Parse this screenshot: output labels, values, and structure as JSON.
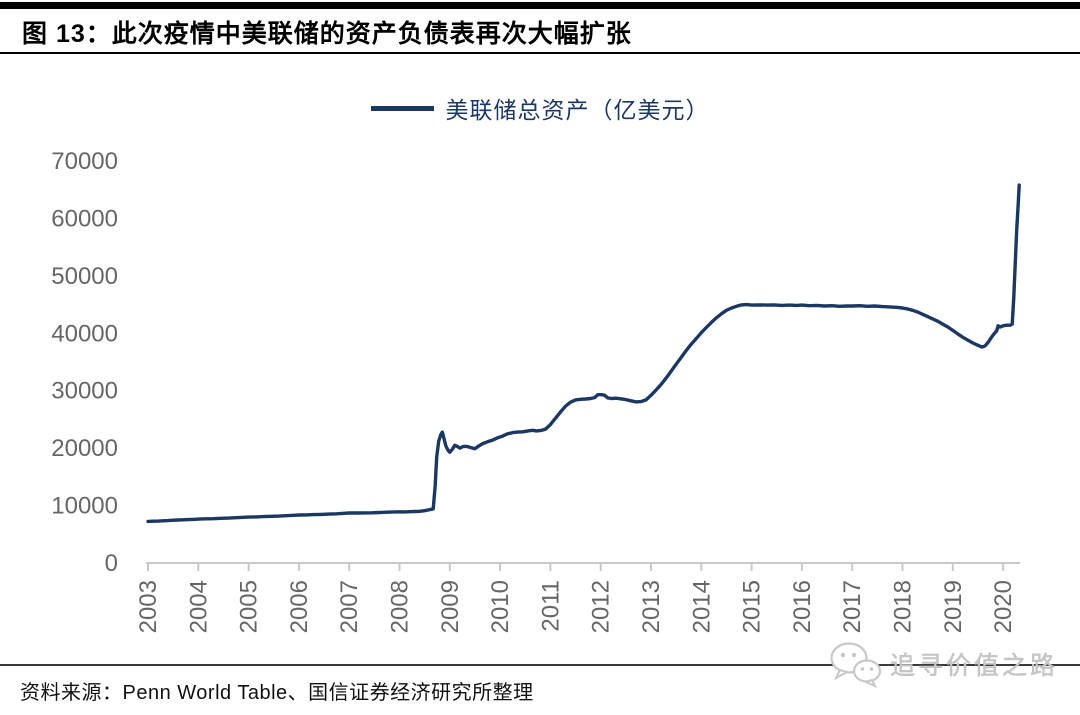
{
  "header": {
    "title": "图 13：此次疫情中美联储的资产负债表再次大幅扩张"
  },
  "legend": {
    "label": "美联储总资产（亿美元）"
  },
  "footer": {
    "source": "资料来源：Penn World Table、国信证券经济研究所整理",
    "watermark": "追寻价值之路"
  },
  "colors": {
    "series": "#1b3763",
    "axis_text": "#666666",
    "axis_line": "#c8c8c8",
    "watermark": "#c7c7c7"
  },
  "chart_data": {
    "type": "line",
    "title": "美联储总资产（亿美元）",
    "series_name": "美联储总资产（亿美元）",
    "xlabel": "",
    "ylabel": "",
    "ylim": [
      0,
      70000
    ],
    "yticks": [
      0,
      10000,
      20000,
      30000,
      40000,
      50000,
      60000,
      70000
    ],
    "xticks": [
      2003,
      2004,
      2005,
      2006,
      2007,
      2008,
      2009,
      2010,
      2011,
      2012,
      2013,
      2014,
      2015,
      2016,
      2017,
      2018,
      2019,
      2020
    ],
    "grid": false,
    "legend_position": "top-center",
    "points": [
      [
        2003.0,
        7250
      ],
      [
        2003.1,
        7280
      ],
      [
        2003.2,
        7300
      ],
      [
        2003.3,
        7350
      ],
      [
        2003.4,
        7380
      ],
      [
        2003.5,
        7450
      ],
      [
        2003.6,
        7480
      ],
      [
        2003.7,
        7520
      ],
      [
        2003.8,
        7560
      ],
      [
        2003.9,
        7600
      ],
      [
        2004.0,
        7650
      ],
      [
        2004.15,
        7700
      ],
      [
        2004.3,
        7720
      ],
      [
        2004.45,
        7780
      ],
      [
        2004.6,
        7820
      ],
      [
        2004.75,
        7880
      ],
      [
        2004.9,
        7950
      ],
      [
        2005.0,
        8000
      ],
      [
        2005.15,
        8030
      ],
      [
        2005.3,
        8080
      ],
      [
        2005.45,
        8130
      ],
      [
        2005.6,
        8170
      ],
      [
        2005.75,
        8230
      ],
      [
        2005.9,
        8300
      ],
      [
        2006.0,
        8350
      ],
      [
        2006.15,
        8380
      ],
      [
        2006.3,
        8430
      ],
      [
        2006.45,
        8470
      ],
      [
        2006.6,
        8520
      ],
      [
        2006.75,
        8570
      ],
      [
        2006.9,
        8650
      ],
      [
        2007.0,
        8700
      ],
      [
        2007.15,
        8700
      ],
      [
        2007.3,
        8720
      ],
      [
        2007.45,
        8750
      ],
      [
        2007.6,
        8800
      ],
      [
        2007.75,
        8850
      ],
      [
        2007.9,
        8900
      ],
      [
        2008.0,
        8920
      ],
      [
        2008.1,
        8900
      ],
      [
        2008.2,
        8930
      ],
      [
        2008.3,
        8960
      ],
      [
        2008.4,
        9000
      ],
      [
        2008.5,
        9100
      ],
      [
        2008.6,
        9300
      ],
      [
        2008.67,
        9400
      ],
      [
        2008.71,
        13500
      ],
      [
        2008.74,
        18500
      ],
      [
        2008.78,
        21200
      ],
      [
        2008.82,
        22300
      ],
      [
        2008.85,
        22800
      ],
      [
        2008.88,
        21800
      ],
      [
        2008.92,
        20400
      ],
      [
        2008.96,
        19700
      ],
      [
        2009.0,
        19300
      ],
      [
        2009.05,
        19800
      ],
      [
        2009.1,
        20500
      ],
      [
        2009.15,
        20300
      ],
      [
        2009.2,
        20000
      ],
      [
        2009.27,
        20300
      ],
      [
        2009.34,
        20300
      ],
      [
        2009.42,
        20100
      ],
      [
        2009.5,
        19900
      ],
      [
        2009.58,
        20400
      ],
      [
        2009.66,
        20800
      ],
      [
        2009.75,
        21100
      ],
      [
        2009.85,
        21400
      ],
      [
        2009.95,
        21800
      ],
      [
        2010.05,
        22100
      ],
      [
        2010.15,
        22500
      ],
      [
        2010.25,
        22700
      ],
      [
        2010.35,
        22800
      ],
      [
        2010.45,
        22850
      ],
      [
        2010.55,
        23000
      ],
      [
        2010.65,
        23100
      ],
      [
        2010.72,
        23000
      ],
      [
        2010.8,
        23050
      ],
      [
        2010.9,
        23300
      ],
      [
        2011.0,
        24100
      ],
      [
        2011.1,
        25200
      ],
      [
        2011.2,
        26300
      ],
      [
        2011.3,
        27300
      ],
      [
        2011.4,
        28000
      ],
      [
        2011.5,
        28400
      ],
      [
        2011.6,
        28500
      ],
      [
        2011.7,
        28550
      ],
      [
        2011.8,
        28650
      ],
      [
        2011.88,
        28800
      ],
      [
        2011.94,
        29300
      ],
      [
        2012.02,
        29300
      ],
      [
        2012.08,
        29200
      ],
      [
        2012.14,
        28750
      ],
      [
        2012.22,
        28650
      ],
      [
        2012.3,
        28700
      ],
      [
        2012.4,
        28600
      ],
      [
        2012.5,
        28450
      ],
      [
        2012.6,
        28250
      ],
      [
        2012.7,
        28050
      ],
      [
        2012.8,
        28100
      ],
      [
        2012.9,
        28400
      ],
      [
        2013.0,
        29200
      ],
      [
        2013.1,
        30100
      ],
      [
        2013.2,
        31100
      ],
      [
        2013.3,
        32200
      ],
      [
        2013.4,
        33400
      ],
      [
        2013.5,
        34600
      ],
      [
        2013.6,
        35800
      ],
      [
        2013.7,
        37000
      ],
      [
        2013.8,
        38100
      ],
      [
        2013.9,
        39100
      ],
      [
        2014.0,
        40100
      ],
      [
        2014.1,
        41000
      ],
      [
        2014.2,
        41900
      ],
      [
        2014.3,
        42700
      ],
      [
        2014.4,
        43400
      ],
      [
        2014.5,
        44000
      ],
      [
        2014.6,
        44400
      ],
      [
        2014.7,
        44700
      ],
      [
        2014.8,
        44950
      ],
      [
        2014.9,
        45000
      ],
      [
        2015.0,
        44900
      ],
      [
        2015.15,
        44950
      ],
      [
        2015.3,
        44900
      ],
      [
        2015.45,
        44950
      ],
      [
        2015.6,
        44850
      ],
      [
        2015.75,
        44900
      ],
      [
        2015.9,
        44850
      ],
      [
        2016.0,
        44900
      ],
      [
        2016.15,
        44800
      ],
      [
        2016.3,
        44850
      ],
      [
        2016.45,
        44750
      ],
      [
        2016.6,
        44800
      ],
      [
        2016.75,
        44700
      ],
      [
        2016.9,
        44750
      ],
      [
        2017.0,
        44750
      ],
      [
        2017.15,
        44800
      ],
      [
        2017.3,
        44700
      ],
      [
        2017.45,
        44750
      ],
      [
        2017.6,
        44650
      ],
      [
        2017.75,
        44600
      ],
      [
        2017.9,
        44500
      ],
      [
        2018.0,
        44400
      ],
      [
        2018.1,
        44250
      ],
      [
        2018.2,
        44000
      ],
      [
        2018.3,
        43700
      ],
      [
        2018.4,
        43300
      ],
      [
        2018.5,
        42900
      ],
      [
        2018.6,
        42500
      ],
      [
        2018.7,
        42100
      ],
      [
        2018.8,
        41600
      ],
      [
        2018.9,
        41100
      ],
      [
        2019.0,
        40500
      ],
      [
        2019.1,
        39900
      ],
      [
        2019.2,
        39300
      ],
      [
        2019.3,
        38800
      ],
      [
        2019.4,
        38300
      ],
      [
        2019.5,
        37900
      ],
      [
        2019.58,
        37600
      ],
      [
        2019.64,
        37800
      ],
      [
        2019.7,
        38400
      ],
      [
        2019.76,
        39200
      ],
      [
        2019.82,
        39900
      ],
      [
        2019.87,
        40400
      ],
      [
        2019.9,
        41300
      ],
      [
        2019.94,
        41100
      ],
      [
        2020.0,
        41300
      ],
      [
        2020.07,
        41400
      ],
      [
        2020.14,
        41400
      ],
      [
        2020.18,
        41600
      ],
      [
        2020.21,
        46000
      ],
      [
        2020.24,
        52000
      ],
      [
        2020.27,
        58000
      ],
      [
        2020.3,
        62500
      ],
      [
        2020.32,
        65800
      ]
    ]
  }
}
